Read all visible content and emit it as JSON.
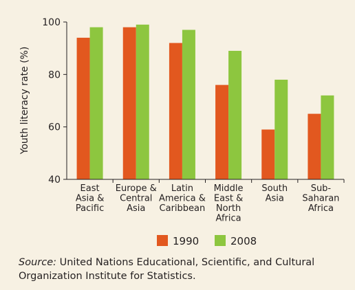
{
  "chart_data": {
    "type": "bar",
    "y_label": "Youth literacy rate (%)",
    "categories": [
      "East\nAsia &\nPacific",
      "Europe &\nCentral\nAsia",
      "Latin\nAmerica &\nCaribbean",
      "Middle\nEast &\nNorth\nAfrica",
      "South\nAsia",
      "Sub-\nSaharan\nAfrica"
    ],
    "series": [
      {
        "name": "1990",
        "color": "#e2581f",
        "values": [
          94,
          98,
          92,
          76,
          59,
          65
        ]
      },
      {
        "name": "2008",
        "color": "#8dc63f",
        "values": [
          98,
          99,
          97,
          89,
          78,
          72
        ]
      }
    ],
    "ylim": [
      40,
      100
    ],
    "yticks": [
      40,
      60,
      80,
      100
    ],
    "source_label": "Source:",
    "source": "United Nations Educational, Scientific, and Cultural Organization Institute for Statistics."
  }
}
